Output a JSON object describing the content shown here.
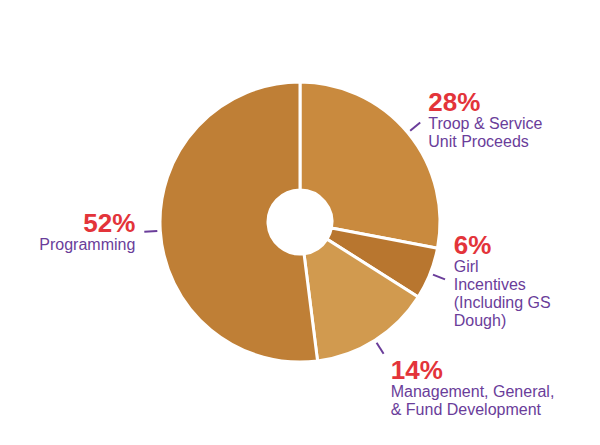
{
  "chart_data": {
    "type": "pie",
    "categories": [
      "Troop & Service Unit Proceeds",
      "Girl Incentives (Including GS Dough)",
      "Management, General, & Fund Development",
      "Programming"
    ],
    "values": [
      28,
      6,
      14,
      52
    ],
    "value_labels": [
      "28%",
      "6%",
      "14%",
      "52%"
    ],
    "colors": [
      "#c98a3e",
      "#b8762f",
      "#d19a4f",
      "#bf7f36"
    ],
    "data_labels": true
  }
}
